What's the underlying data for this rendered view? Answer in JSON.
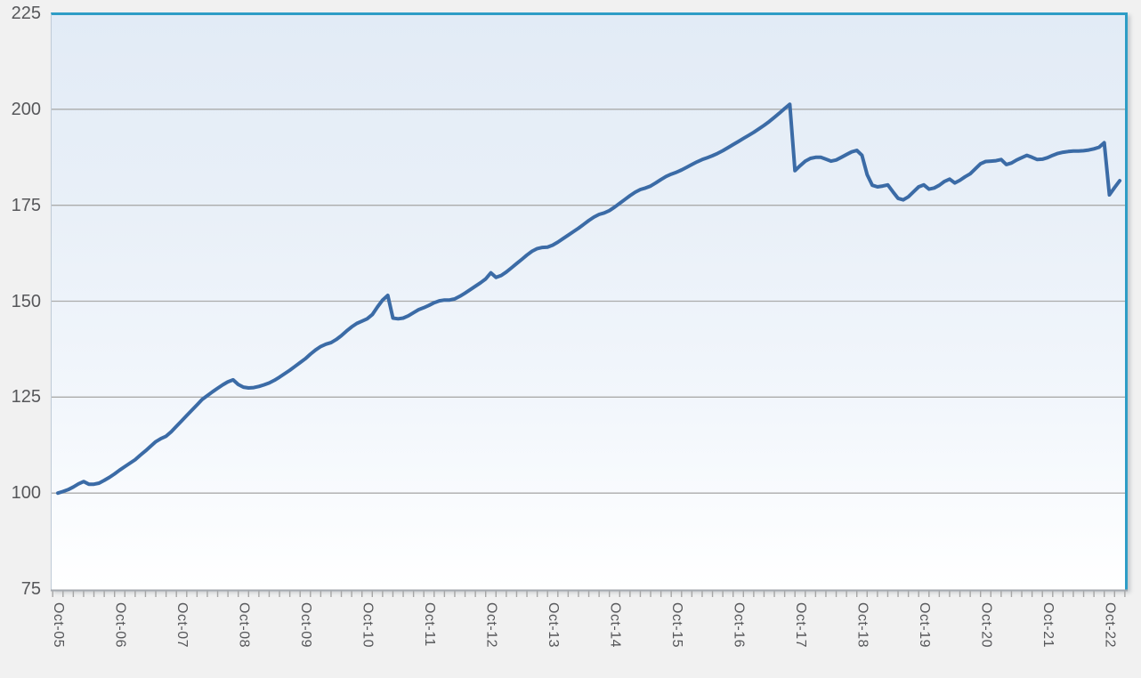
{
  "chart_data": {
    "type": "line",
    "title": "",
    "xlabel": "",
    "ylabel": "",
    "legend": "none",
    "grid": "horizontal",
    "frequency": "monthly",
    "x_tick_labels": [
      "Oct-05",
      "Oct-06",
      "Oct-07",
      "Oct-08",
      "Oct-09",
      "Oct-10",
      "Oct-11",
      "Oct-12",
      "Oct-13",
      "Oct-14",
      "Oct-15",
      "Oct-16",
      "Oct-17",
      "Oct-18",
      "Oct-19",
      "Oct-20",
      "Oct-21",
      "Oct-22"
    ],
    "y_ticks": [
      225,
      200,
      175,
      150,
      125,
      100,
      75
    ],
    "ylim": [
      75,
      225
    ],
    "series": [
      {
        "name": "",
        "start": "Oct-05",
        "values": [
          100.0,
          100.4,
          100.9,
          101.6,
          102.4,
          103.0,
          102.3,
          102.3,
          102.6,
          103.3,
          104.1,
          105.0,
          106.0,
          106.9,
          107.8,
          108.7,
          109.9,
          111.0,
          112.2,
          113.4,
          114.2,
          114.8,
          116.0,
          117.4,
          118.8,
          120.2,
          121.6,
          123.0,
          124.4,
          125.4,
          126.4,
          127.3,
          128.2,
          129.0,
          129.5,
          128.3,
          127.6,
          127.4,
          127.5,
          127.8,
          128.2,
          128.7,
          129.4,
          130.2,
          131.1,
          132.0,
          133.0,
          134.0,
          135.0,
          136.2,
          137.3,
          138.2,
          138.8,
          139.2,
          140.0,
          141.0,
          142.2,
          143.3,
          144.2,
          144.8,
          145.4,
          146.5,
          148.5,
          150.3,
          151.5,
          145.6,
          145.4,
          145.6,
          146.2,
          147.0,
          147.8,
          148.3,
          148.9,
          149.6,
          150.1,
          150.3,
          150.3,
          150.6,
          151.3,
          152.1,
          153.0,
          153.9,
          154.8,
          155.8,
          157.4,
          156.2,
          156.7,
          157.6,
          158.7,
          159.8,
          160.9,
          162.0,
          163.0,
          163.7,
          164.0,
          164.1,
          164.6,
          165.4,
          166.3,
          167.2,
          168.1,
          169.0,
          170.0,
          171.0,
          171.9,
          172.6,
          173.0,
          173.6,
          174.5,
          175.5,
          176.5,
          177.5,
          178.4,
          179.1,
          179.5,
          180.0,
          180.8,
          181.7,
          182.5,
          183.1,
          183.6,
          184.2,
          184.9,
          185.6,
          186.3,
          186.9,
          187.4,
          187.9,
          188.5,
          189.2,
          190.0,
          190.8,
          191.6,
          192.4,
          193.2,
          194.0,
          194.9,
          195.8,
          196.8,
          197.9,
          199.0,
          200.2,
          201.3,
          184.0,
          185.3,
          186.5,
          187.2,
          187.5,
          187.5,
          187.0,
          186.5,
          186.8,
          187.5,
          188.2,
          188.9,
          189.3,
          188.0,
          183.0,
          180.2,
          179.8,
          180.0,
          180.3,
          178.5,
          176.8,
          176.4,
          177.2,
          178.5,
          179.8,
          180.3,
          179.2,
          179.5,
          180.2,
          181.2,
          181.8,
          180.8,
          181.5,
          182.4,
          183.2,
          184.5,
          185.8,
          186.4,
          186.5,
          186.6,
          186.9,
          185.6,
          186.0,
          186.8,
          187.4,
          188.0,
          187.5,
          186.9,
          187.0,
          187.4,
          188.0,
          188.5,
          188.8,
          189.0,
          189.1,
          189.1,
          189.2,
          189.4,
          189.7,
          190.1,
          191.3,
          177.7,
          179.6,
          181.4
        ]
      }
    ],
    "colors": {
      "line": "#3b6ba6",
      "frame": "#2e9dc6",
      "gridline": "#ababab",
      "axis_line": "#a4a9af",
      "tick": "#a6a6a6",
      "label": "#56575a",
      "page_background": "#f1f1f1",
      "plot_background_top": "#e2ebf6",
      "plot_background_bottom": "#ffffff"
    }
  }
}
